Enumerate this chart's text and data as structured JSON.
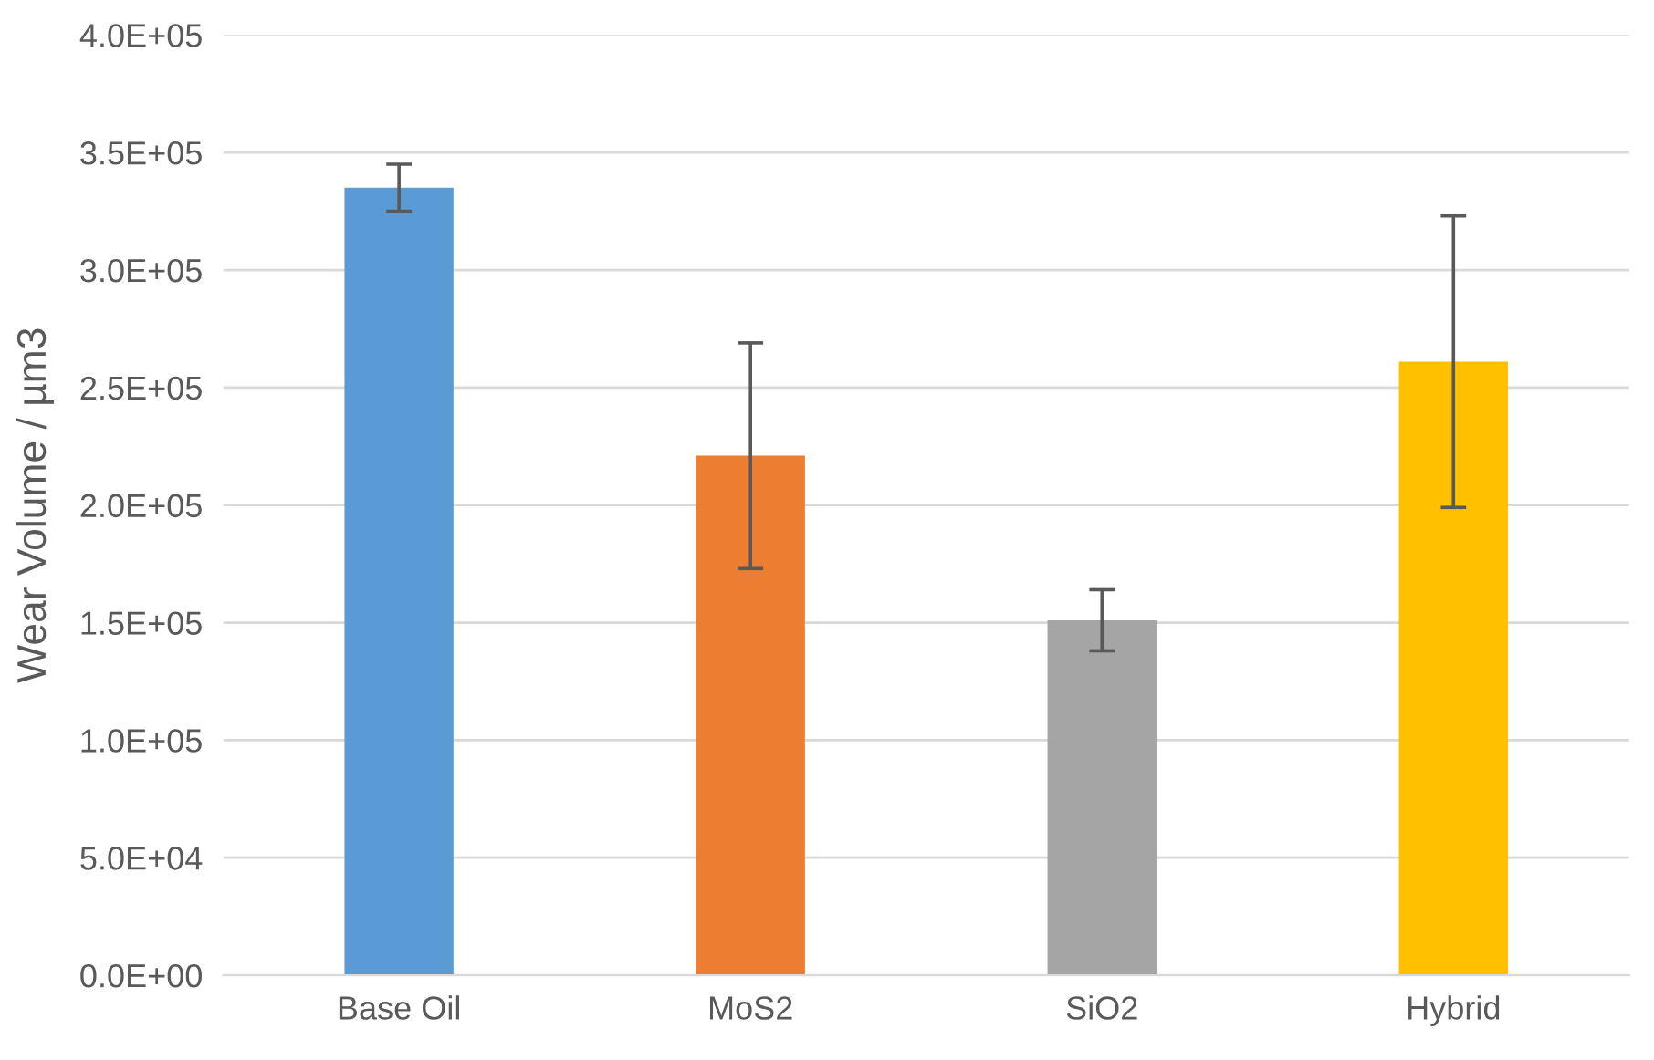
{
  "chart_data": {
    "type": "bar",
    "ylabel": "Wear Volume / µm3",
    "categories": [
      "Base Oil",
      "MoS2",
      "SiO2",
      "Hybrid"
    ],
    "values": [
      335000,
      221000,
      151000,
      261000
    ],
    "colors": [
      "#5b9bd5",
      "#ed7d31",
      "#a5a5a5",
      "#ffc000"
    ],
    "errors": [
      10000,
      48000,
      13000,
      62000
    ],
    "ylim": [
      0,
      400000
    ],
    "yticks": [
      {
        "value": 0,
        "label": "0.0E+00"
      },
      {
        "value": 50000,
        "label": "5.0E+04"
      },
      {
        "value": 100000,
        "label": "1.0E+05"
      },
      {
        "value": 150000,
        "label": "1.5E+05"
      },
      {
        "value": 200000,
        "label": "2.0E+05"
      },
      {
        "value": 250000,
        "label": "2.5E+05"
      },
      {
        "value": 300000,
        "label": "3.0E+05"
      },
      {
        "value": 350000,
        "label": "3.5E+05"
      },
      {
        "value": 400000,
        "label": "4.0E+05"
      }
    ],
    "grid": "y",
    "legend": false
  }
}
